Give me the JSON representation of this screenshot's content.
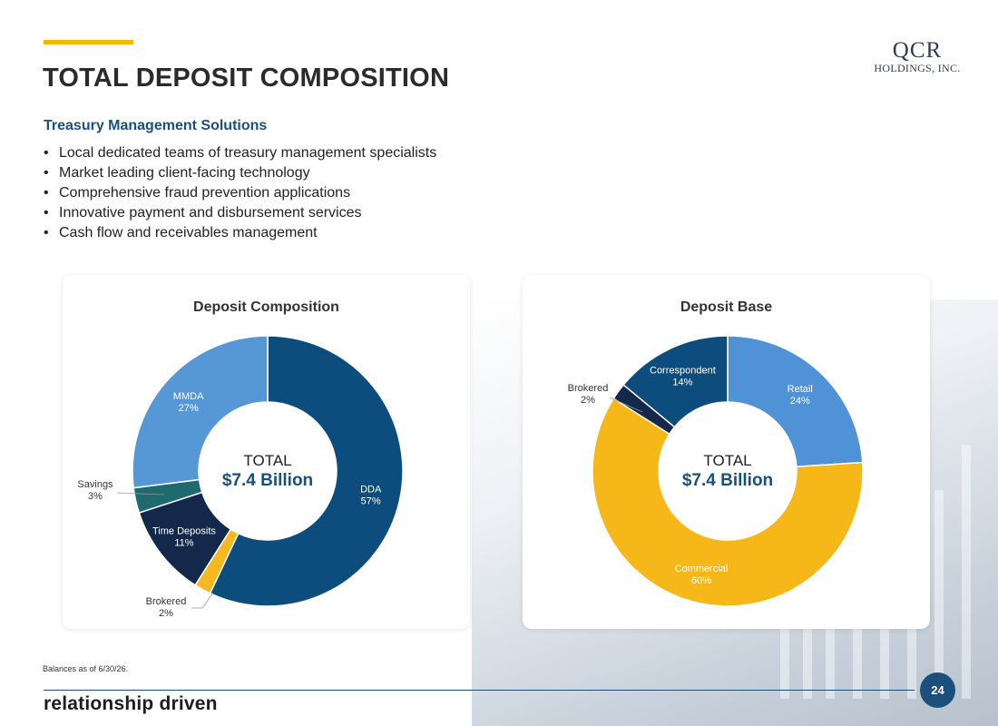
{
  "header": {
    "title": "TOTAL DEPOSIT COMPOSITION"
  },
  "logo": {
    "main": "QCR",
    "sub": "HOLDINGS, INC."
  },
  "treasury": {
    "heading": "Treasury Management Solutions",
    "bullets": [
      "Local dedicated teams of treasury management specialists",
      "Market leading client-facing technology",
      "Comprehensive fraud prevention applications",
      "Innovative payment and disbursement services",
      "Cash flow and receivables management"
    ]
  },
  "chart_data": [
    {
      "type": "pie",
      "title": "Deposit Composition",
      "center_label": "TOTAL",
      "center_value": "$7.4 Billion",
      "slices": [
        {
          "label": "DDA",
          "value": 57,
          "pct": "57%",
          "color": "#0c4d7d",
          "text_color": "#ffffff"
        },
        {
          "label": "Brokered",
          "value": 2,
          "pct": "2%",
          "color": "#f6b821",
          "text_color": "#333333"
        },
        {
          "label": "Time Deposits",
          "value": 11,
          "pct": "11%",
          "color": "#13284a",
          "text_color": "#ffffff"
        },
        {
          "label": "Savings",
          "value": 3,
          "pct": "3%",
          "color": "#1f6a6f",
          "text_color": "#333333"
        },
        {
          "label": "MMDA",
          "value": 27,
          "pct": "27%",
          "color": "#5698d5",
          "text_color": "#ffffff"
        }
      ]
    },
    {
      "type": "pie",
      "title": "Deposit Base",
      "center_label": "TOTAL",
      "center_value": "$7.4 Billion",
      "slices": [
        {
          "label": "Retail",
          "value": 24,
          "pct": "24%",
          "color": "#4f92d6",
          "text_color": "#ffffff"
        },
        {
          "label": "Commercial",
          "value": 60,
          "pct": "60%",
          "color": "#f6b818",
          "text_color": "#ffffff"
        },
        {
          "label": "Brokered",
          "value": 2,
          "pct": "2%",
          "color": "#13284a",
          "text_color": "#333333"
        },
        {
          "label": "Correspondent",
          "value": 14,
          "pct": "14%",
          "color": "#0c4d7d",
          "text_color": "#ffffff"
        }
      ]
    }
  ],
  "footer": {
    "note": "Balances as of 6/30/26.",
    "tagline": "relationship driven",
    "page_number": "24"
  }
}
